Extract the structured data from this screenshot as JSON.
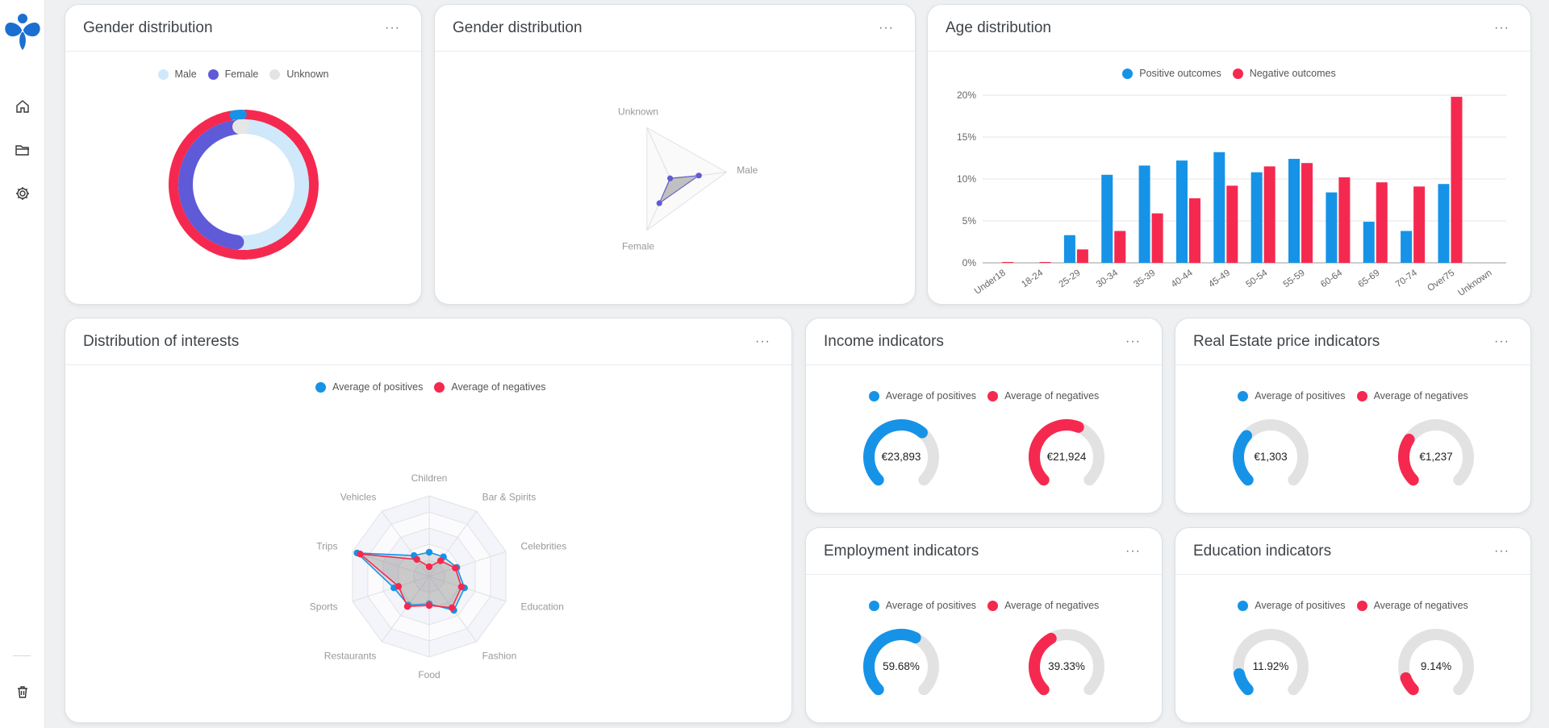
{
  "colors": {
    "blue": "#1693e7",
    "red": "#f5294f",
    "lightblue": "#cfe8fa",
    "purple": "#5f5ad8",
    "grey": "#e6e6e6",
    "logo": "#1a6fd0"
  },
  "sidebar": {
    "items": [
      {
        "icon": "home-icon"
      },
      {
        "icon": "folder-icon"
      },
      {
        "icon": "gear-icon"
      },
      {
        "icon": "trash-icon"
      }
    ]
  },
  "cards": {
    "gender_donut": {
      "title": "Gender distribution",
      "more": "···",
      "legend": [
        "Male",
        "Female",
        "Unknown"
      ]
    },
    "gender_radar": {
      "title": "Gender distribution",
      "more": "···",
      "axes": [
        "Male",
        "Unknown",
        "Female"
      ]
    },
    "age": {
      "title": "Age distribution",
      "more": "···",
      "legend": [
        "Positive outcomes",
        "Negative outcomes"
      ]
    },
    "interests": {
      "title": "Distribution of interests",
      "more": "···",
      "legend": [
        "Average of positives",
        "Average of negatives"
      ]
    },
    "income": {
      "title": "Income indicators",
      "more": "···",
      "legend": [
        "Average of positives",
        "Average of negatives"
      ],
      "pos_label": "€23,893",
      "neg_label": "€21,924"
    },
    "realestate": {
      "title": "Real Estate price indicators",
      "more": "···",
      "legend": [
        "Average of positives",
        "Average of negatives"
      ],
      "pos_label": "€1,303",
      "neg_label": "€1,237"
    },
    "employment": {
      "title": "Employment indicators",
      "more": "···",
      "legend": [
        "Average of positives",
        "Average of negatives"
      ],
      "pos_label": "59.68%",
      "neg_label": "39.33%"
    },
    "education": {
      "title": "Education indicators",
      "more": "···",
      "legend": [
        "Average of positives",
        "Average of negatives"
      ],
      "pos_label": "11.92%",
      "neg_label": "9.14%"
    }
  },
  "chart_data": [
    {
      "type": "pie",
      "chart": "gender_donut",
      "series": [
        {
          "name": "Positive outcomes",
          "categories": [
            "Male",
            "Female",
            "Unknown"
          ],
          "values": [
            51.5,
            47.0,
            1.5
          ]
        },
        {
          "name": "Negative outcomes",
          "categories": [
            "Male",
            "Female",
            "Unknown"
          ],
          "values": [
            49.0,
            48.5,
            2.5
          ]
        }
      ]
    },
    {
      "type": "radar",
      "chart": "gender_radar",
      "categories": [
        "Male",
        "Unknown",
        "Female"
      ],
      "max": 100,
      "series": [
        {
          "name": "Average of positives",
          "values": [
            51,
            1,
            47
          ]
        },
        {
          "name": "Average of negatives",
          "values": [
            49,
            2,
            48
          ]
        }
      ]
    },
    {
      "type": "bar",
      "chart": "age",
      "categories": [
        "Under18",
        "18-24",
        "25-29",
        "30-34",
        "35-39",
        "40-44",
        "45-49",
        "50-54",
        "55-59",
        "60-64",
        "65-69",
        "70-74",
        "Over75",
        "Unknown"
      ],
      "ylim": [
        0,
        20
      ],
      "yticks": [
        "0%",
        "5%",
        "10%",
        "15%",
        "20%"
      ],
      "series": [
        {
          "name": "Positive outcomes",
          "values": [
            0,
            0,
            3.3,
            10.5,
            11.6,
            12.2,
            13.2,
            10.8,
            12.4,
            8.4,
            4.9,
            3.8,
            9.4,
            0
          ]
        },
        {
          "name": "Negative outcomes",
          "values": [
            0.1,
            0.1,
            1.6,
            3.8,
            5.9,
            7.7,
            9.2,
            11.5,
            11.9,
            10.2,
            9.6,
            9.1,
            19.8,
            0
          ]
        }
      ]
    },
    {
      "type": "radar",
      "chart": "interests",
      "categories": [
        "Children",
        "Bar & Spirits",
        "Celebrities",
        "Education",
        "Fashion",
        "Food",
        "Restaurants",
        "Sports",
        "Trips",
        "Vehicles"
      ],
      "max": 5,
      "series": [
        {
          "name": "Average of positives",
          "values": [
            1.5,
            1.5,
            1.8,
            2.3,
            2.6,
            1.7,
            2.2,
            2.3,
            4.7,
            1.6
          ]
        },
        {
          "name": "Average of negatives",
          "values": [
            0.6,
            1.2,
            1.7,
            2.1,
            2.4,
            1.8,
            2.3,
            2.0,
            4.5,
            1.3
          ]
        }
      ]
    },
    {
      "type": "gauge",
      "chart": "indicators",
      "series": [
        {
          "name": "Income indicators",
          "positives": 0.65,
          "negatives": 0.58
        },
        {
          "name": "Real Estate price indicators",
          "positives": 0.32,
          "negatives": 0.29
        },
        {
          "name": "Employment indicators",
          "positives": 0.5968,
          "negatives": 0.3933
        },
        {
          "name": "Education indicators",
          "positives": 0.1192,
          "negatives": 0.0914
        }
      ]
    }
  ]
}
